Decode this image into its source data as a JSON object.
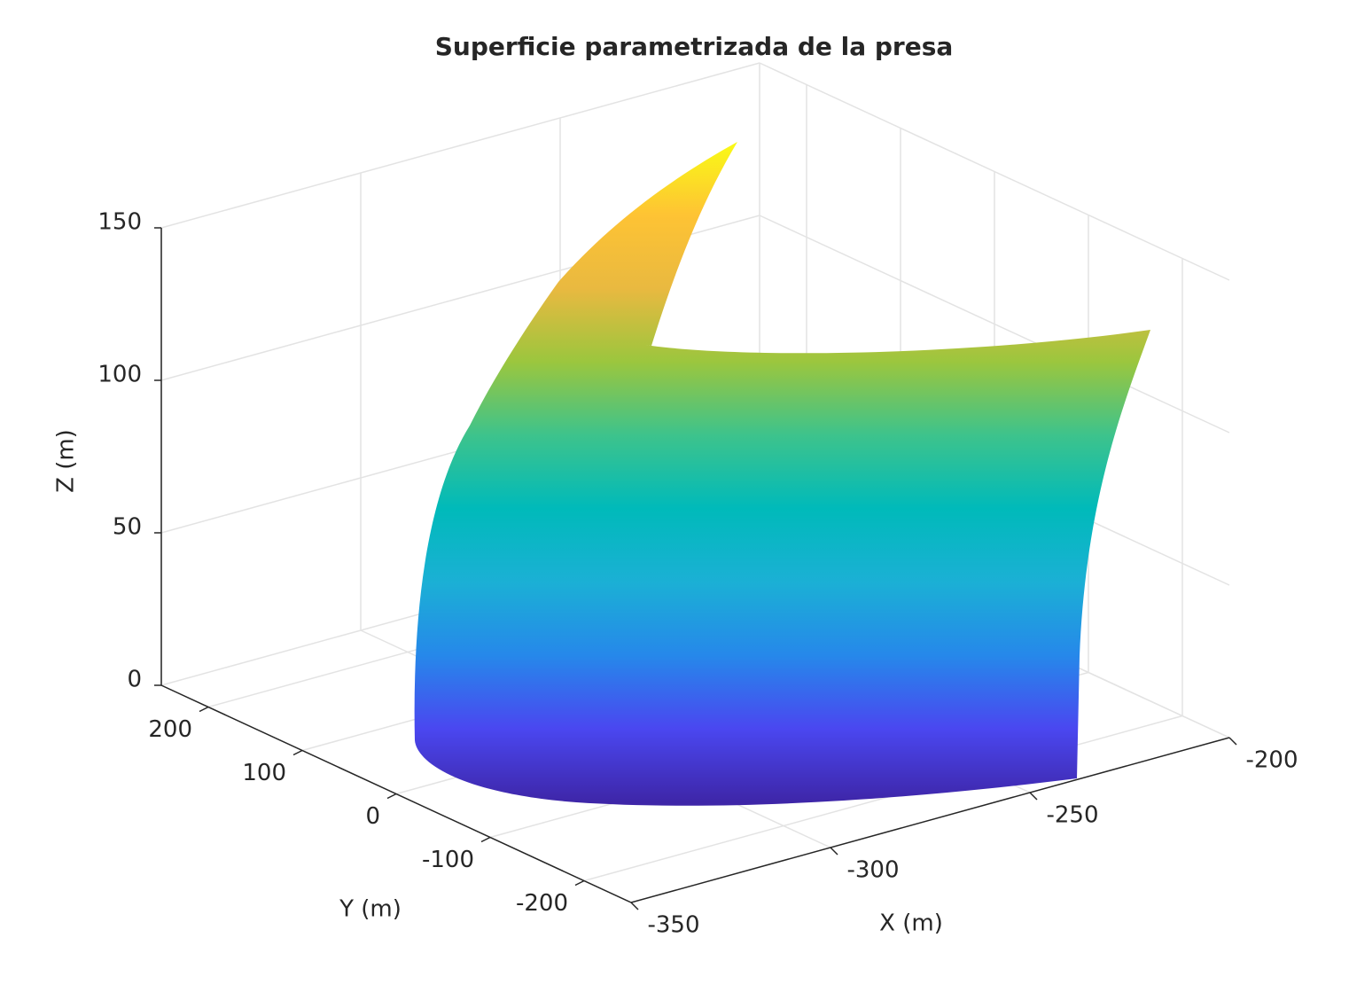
{
  "chart_data": {
    "type": "surface3d",
    "title": "Superficie parametrizada de la presa",
    "xlabel": "X (m)",
    "ylabel": "Y (m)",
    "zlabel": "Z (m)",
    "xlim": [
      -350,
      -200
    ],
    "ylim": [
      -250,
      250
    ],
    "zlim": [
      0,
      150
    ],
    "xticks": [
      -350,
      -300,
      -250,
      -200
    ],
    "yticks": [
      -200,
      -100,
      0,
      100,
      200
    ],
    "zticks": [
      0,
      50,
      100,
      150
    ],
    "grid": true,
    "colormap": [
      "#3e26a8",
      "#4a47f0",
      "#2688ea",
      "#1bb0d5",
      "#00baba",
      "#3dc38c",
      "#9bc63e",
      "#e9b940",
      "#fec334",
      "#f9fb15"
    ]
  }
}
